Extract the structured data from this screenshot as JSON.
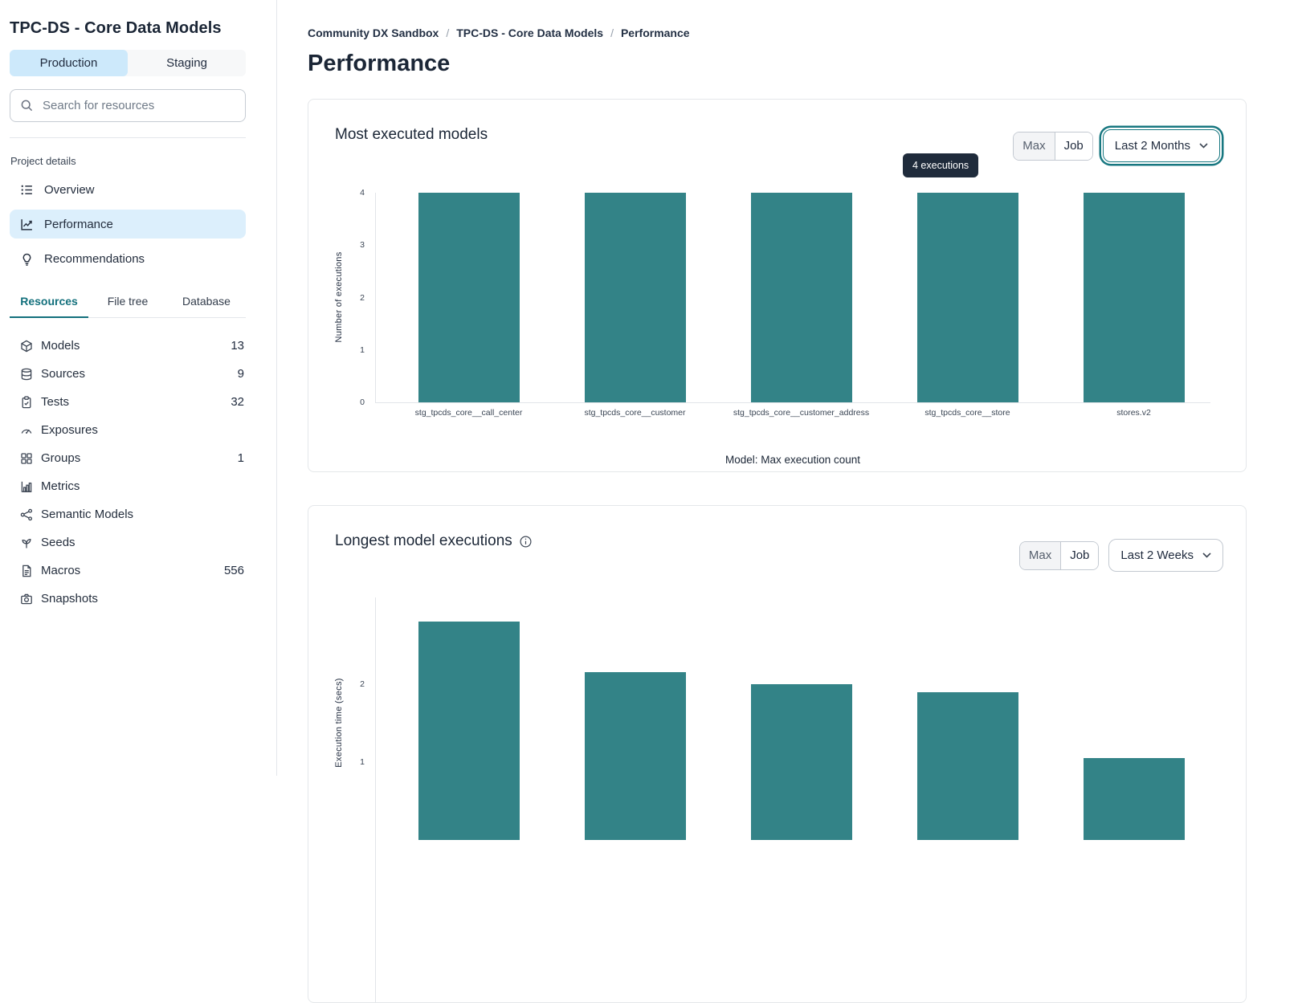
{
  "sidebar": {
    "title": "TPC-DS - Core Data Models",
    "environments": [
      {
        "label": "Production",
        "selected": true
      },
      {
        "label": "Staging",
        "selected": false
      }
    ],
    "search": {
      "placeholder": "Search for resources"
    },
    "project_details_label": "Project details",
    "nav": [
      {
        "label": "Overview",
        "selected": false
      },
      {
        "label": "Performance",
        "selected": true
      },
      {
        "label": "Recommendations",
        "selected": false
      }
    ],
    "tabs": [
      {
        "label": "Resources",
        "selected": true
      },
      {
        "label": "File tree",
        "selected": false
      },
      {
        "label": "Database",
        "selected": false
      }
    ],
    "resources": [
      {
        "label": "Models",
        "count": "13",
        "icon": "cube-icon"
      },
      {
        "label": "Sources",
        "count": "9",
        "icon": "database-icon"
      },
      {
        "label": "Tests",
        "count": "32",
        "icon": "clipboard-check-icon"
      },
      {
        "label": "Exposures",
        "count": "",
        "icon": "gauge-icon"
      },
      {
        "label": "Groups",
        "count": "1",
        "icon": "grid-icon"
      },
      {
        "label": "Metrics",
        "count": "",
        "icon": "bar-chart-icon"
      },
      {
        "label": "Semantic Models",
        "count": "",
        "icon": "share-network-icon"
      },
      {
        "label": "Seeds",
        "count": "",
        "icon": "sprout-icon"
      },
      {
        "label": "Macros",
        "count": "556",
        "icon": "file-text-icon"
      },
      {
        "label": "Snapshots",
        "count": "",
        "icon": "camera-icon"
      }
    ]
  },
  "main": {
    "breadcrumb": [
      {
        "label": "Community DX Sandbox"
      },
      {
        "label": "TPC-DS - Core Data Models"
      },
      {
        "label": "Performance"
      }
    ],
    "page_title": "Performance"
  },
  "cards": [
    {
      "title": "Most executed models",
      "controls": {
        "max_label": "Max",
        "job_label": "Job",
        "range_value": "Last 2 Months"
      },
      "tooltip": "4 executions",
      "chart_data": {
        "type": "bar",
        "categories": [
          "stg_tpcds_core__call_center",
          "stg_tpcds_core__customer",
          "stg_tpcds_core__customer_address",
          "stg_tpcds_core__store",
          "stores.v2"
        ],
        "values": [
          4,
          4,
          4,
          4,
          4
        ],
        "title": "Most executed models",
        "xlabel": "Model: Max execution count",
        "ylabel": "Number of executions",
        "ylim": [
          0,
          4
        ],
        "yticks": [
          0,
          1,
          2,
          3,
          4
        ],
        "grid": false,
        "bar_color": "#338387"
      }
    },
    {
      "title": "Longest model executions",
      "controls": {
        "max_label": "Max",
        "job_label": "Job",
        "range_value": "Last 2 Weeks"
      },
      "chart_data": {
        "type": "bar",
        "values": [
          2.8,
          2.15,
          2.0,
          1.9,
          1.05
        ],
        "title": "Longest model executions",
        "ylabel": "Execution time (secs)",
        "yticks": [
          1,
          2
        ],
        "grid": false,
        "bar_color": "#338387"
      }
    }
  ],
  "colors": {
    "bar_teal": "#338387",
    "accent_teal": "#177780",
    "selected_nav_blue": "#dceffc",
    "selected_env_blue": "#cde9fb",
    "tooltip_bg": "#1f2b3b",
    "tab_active_teal": "#13707c"
  }
}
